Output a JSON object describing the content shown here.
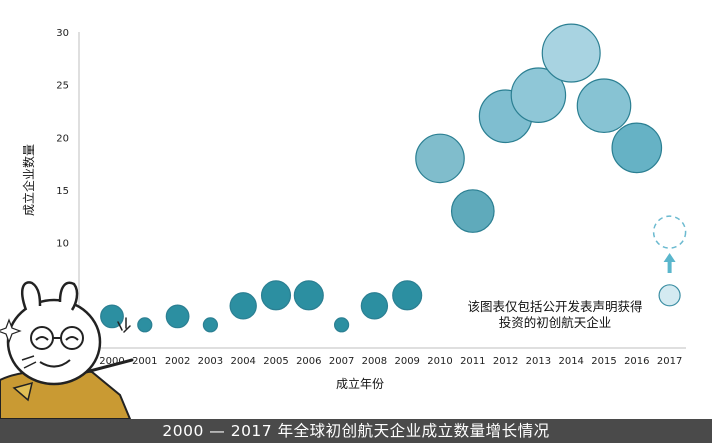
{
  "chart_data": {
    "type": "scatter",
    "subtype": "bubble",
    "title": "2000 — 2017 年全球初创航天企业成立数量增长情况",
    "xlabel": "成立年份",
    "ylabel": "成立企业数量",
    "x": [
      "2000",
      "2001",
      "2002",
      "2003",
      "2004",
      "2005",
      "2006",
      "2007",
      "2008",
      "2009",
      "2010",
      "2011",
      "2012",
      "2013",
      "2014",
      "2015",
      "2016",
      "2017"
    ],
    "y": [
      1,
      0,
      1,
      0,
      2,
      3,
      3,
      0,
      2,
      3,
      16,
      11,
      20,
      22,
      26,
      21,
      17,
      11
    ],
    "projected_2017": 11,
    "reported_2017": 3,
    "ylim": [
      0,
      30
    ],
    "yticks": [
      10,
      15,
      20,
      25,
      30
    ],
    "grid": false,
    "legend": "none",
    "note": [
      "该图表仅包括公开发表声明获得",
      "投资的初创航天企业"
    ],
    "colors": {
      "low": "#23899b",
      "mid": "#5eaec2",
      "high": "#a8d3e1",
      "projected_fill": "#d4eaf1",
      "dashed": "#6bbad0",
      "arrow": "#5ab6cc"
    }
  }
}
